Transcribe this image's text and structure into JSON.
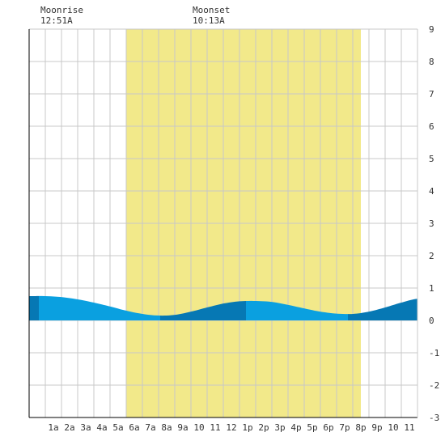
{
  "header": {
    "moonrise_label": "Moonrise",
    "moonrise_time": "12:51A",
    "moonset_label": "Moonset",
    "moonset_time": "10:13A"
  },
  "colors": {
    "daylight": "#f2e98a",
    "night": "#ffffff",
    "grid": "#c8c8c8",
    "tide_light": "#0aa0e0",
    "tide_dark": "#0678b4",
    "axis": "#000000"
  },
  "chart_data": {
    "type": "area",
    "title": "",
    "xlabel": "",
    "ylabel": "",
    "x_range_hours": [
      -0.5,
      23.5
    ],
    "ylim": [
      -3,
      9
    ],
    "y_ticks": [
      -3,
      -2,
      -1,
      0,
      1,
      2,
      3,
      4,
      5,
      6,
      7,
      8,
      9
    ],
    "x_tick_labels": [
      "1a",
      "2a",
      "3a",
      "4a",
      "5a",
      "6a",
      "7a",
      "8a",
      "9a",
      "10",
      "11",
      "12",
      "1p",
      "2p",
      "3p",
      "4p",
      "5p",
      "6p",
      "7p",
      "8p",
      "9p",
      "10",
      "11"
    ],
    "daylight_hours": [
      5.5,
      20.0
    ],
    "grid": true,
    "tide": {
      "x_hours": [
        -0.5,
        0.5,
        1.5,
        2.5,
        3.5,
        4.5,
        5.5,
        6.5,
        7.5,
        8.5,
        9.5,
        10.5,
        11.5,
        12.5,
        13.5,
        14.5,
        15.5,
        16.5,
        17.5,
        18.5,
        19.5,
        20.5,
        21.5,
        22.5,
        23.5
      ],
      "y_values": [
        0.75,
        0.75,
        0.72,
        0.65,
        0.55,
        0.43,
        0.3,
        0.2,
        0.15,
        0.17,
        0.27,
        0.4,
        0.52,
        0.59,
        0.6,
        0.57,
        0.48,
        0.37,
        0.27,
        0.21,
        0.2,
        0.27,
        0.4,
        0.55,
        0.67
      ]
    },
    "tide_extremes": [
      {
        "type": "high",
        "x_hour": 0.1,
        "value": 0.75
      },
      {
        "type": "low",
        "x_hour": 7.6,
        "value": 0.15
      },
      {
        "type": "high",
        "x_hour": 12.9,
        "value": 0.6
      },
      {
        "type": "low",
        "x_hour": 19.2,
        "value": 0.2
      }
    ]
  }
}
